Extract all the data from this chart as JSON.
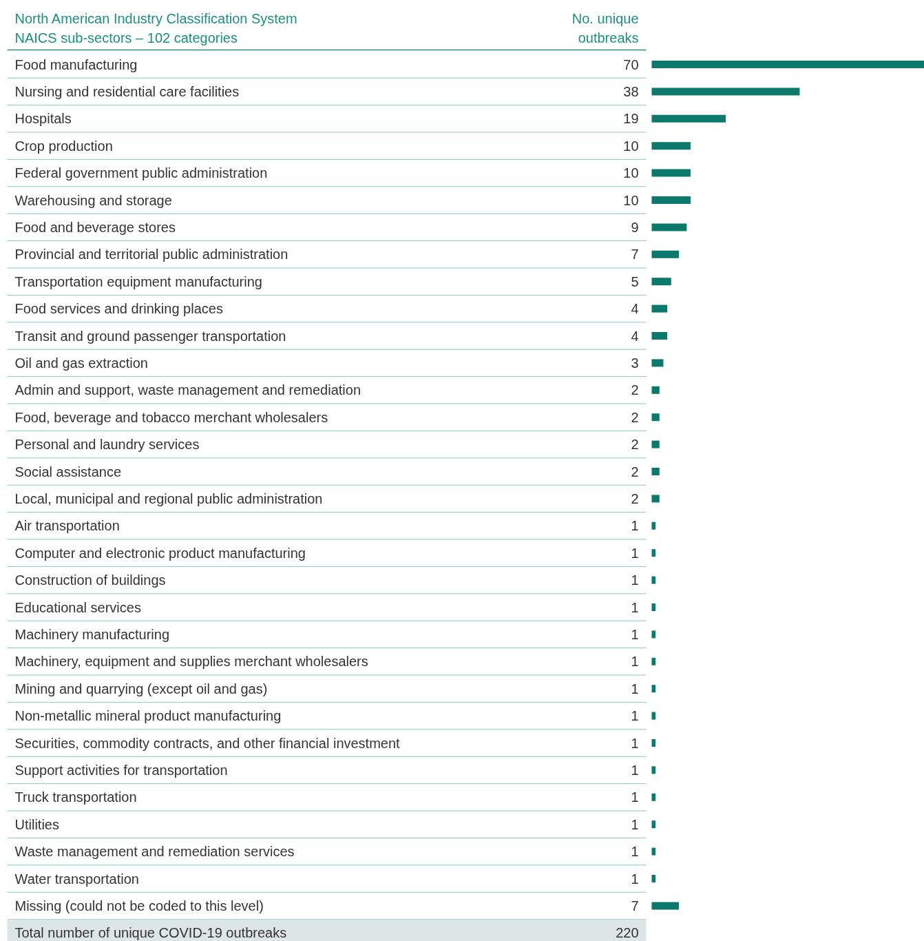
{
  "chart_data": {
    "type": "bar",
    "orientation": "horizontal",
    "title": "North American Industry Classification System",
    "subtitle": "NAICS sub-sectors – 102 categories",
    "xlabel": "No. unique outbreaks",
    "categories": [
      "Food manufacturing",
      "Nursing and residential care facilities",
      "Hospitals",
      "Crop production",
      "Federal government public administration",
      "Warehousing and storage",
      "Food and beverage stores",
      "Provincial and territorial public administration",
      "Transportation equipment manufacturing",
      "Food services and drinking places",
      "Transit and ground passenger transportation",
      "Oil and gas extraction",
      "Admin and support, waste management and remediation",
      "Food, beverage and tobacco merchant wholesalers",
      "Personal and laundry services",
      "Social assistance",
      "Local, municipal and regional public administration",
      "Air transportation",
      "Computer and electronic product manufacturing",
      "Construction of buildings",
      "Educational services",
      "Machinery manufacturing",
      "Machinery, equipment and supplies merchant wholesalers",
      "Mining and quarrying (except oil and gas)",
      "Non-metallic mineral product manufacturing",
      "Securities, commodity contracts, and other financial investment",
      "Support activities for transportation",
      "Truck transportation",
      "Utilities",
      "Waste management and remediation services",
      "Water transportation",
      "Missing (could not be coded to this level)"
    ],
    "values": [
      70,
      38,
      19,
      10,
      10,
      10,
      9,
      7,
      5,
      4,
      4,
      3,
      2,
      2,
      2,
      2,
      2,
      1,
      1,
      1,
      1,
      1,
      1,
      1,
      1,
      1,
      1,
      1,
      1,
      1,
      1,
      7
    ],
    "color": "#0b7a6d",
    "xlim": [
      0,
      70
    ],
    "data_labels": true,
    "annotations": [
      "Total number of unique COVID-19 outbreaks",
      "220"
    ]
  }
}
